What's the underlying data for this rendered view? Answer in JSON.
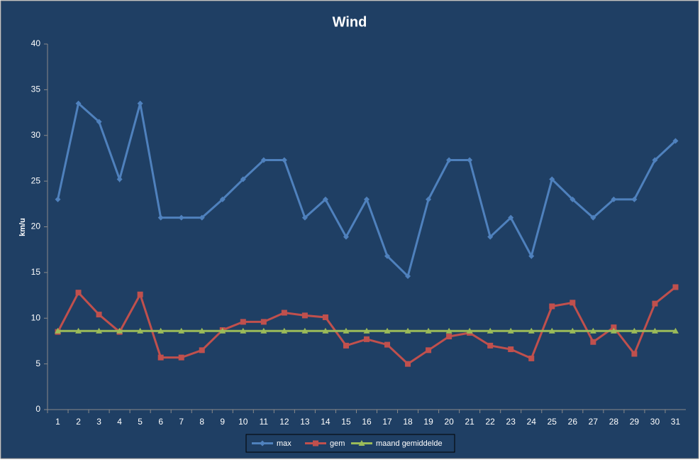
{
  "chart_data": {
    "type": "line",
    "title": "Wind",
    "y_label": "km/u",
    "categories": [
      "1",
      "2",
      "3",
      "4",
      "5",
      "6",
      "7",
      "8",
      "9",
      "10",
      "11",
      "12",
      "13",
      "14",
      "15",
      "16",
      "17",
      "18",
      "19",
      "20",
      "21",
      "22",
      "23",
      "24",
      "25",
      "26",
      "27",
      "28",
      "29",
      "30",
      "31"
    ],
    "series": [
      {
        "name": "max",
        "color": "#4f81bd",
        "marker": "diamond",
        "values": [
          23.0,
          33.5,
          31.5,
          25.2,
          33.5,
          21.0,
          21.0,
          21.0,
          23.0,
          25.2,
          27.3,
          27.3,
          21.0,
          23.0,
          18.9,
          23.0,
          16.8,
          14.6,
          23.0,
          27.3,
          27.3,
          18.9,
          21.0,
          16.8,
          25.2,
          23.0,
          21.0,
          23.0,
          23.0,
          27.3,
          29.4
        ]
      },
      {
        "name": "gem",
        "color": "#c0504d",
        "marker": "square",
        "values": [
          8.5,
          12.8,
          10.4,
          8.5,
          12.6,
          5.7,
          5.7,
          6.5,
          8.7,
          9.6,
          9.6,
          10.6,
          10.3,
          10.1,
          7.0,
          7.7,
          7.1,
          5.0,
          6.5,
          8.0,
          8.4,
          7.0,
          6.6,
          5.6,
          11.3,
          11.7,
          7.4,
          9.0,
          6.1,
          11.6,
          13.4
        ]
      },
      {
        "name": "maand gemiddelde",
        "color": "#9bbb59",
        "marker": "triangle",
        "values": [
          8.6,
          8.6,
          8.6,
          8.6,
          8.6,
          8.6,
          8.6,
          8.6,
          8.6,
          8.6,
          8.6,
          8.6,
          8.6,
          8.6,
          8.6,
          8.6,
          8.6,
          8.6,
          8.6,
          8.6,
          8.6,
          8.6,
          8.6,
          8.6,
          8.6,
          8.6,
          8.6,
          8.6,
          8.6,
          8.6,
          8.6
        ]
      }
    ],
    "ylim": [
      0,
      40
    ],
    "yticks": [
      0,
      5,
      10,
      15,
      20,
      25,
      30,
      35,
      40
    ],
    "grid": false,
    "legend": "bottom"
  }
}
